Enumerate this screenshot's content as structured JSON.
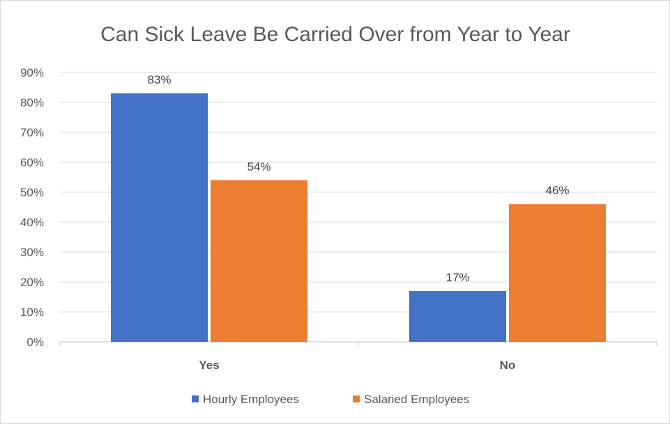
{
  "chart_data": {
    "type": "bar",
    "title": "Can Sick Leave Be Carried Over from Year to Year",
    "categories": [
      "Yes",
      "No"
    ],
    "series": [
      {
        "name": "Hourly Employees",
        "values": [
          83,
          17
        ],
        "labels": [
          "83%",
          "17%"
        ],
        "color": "#4472C4"
      },
      {
        "name": "Salaried Employees",
        "values": [
          54,
          46
        ],
        "labels": [
          "54%",
          "46%"
        ],
        "color": "#ED7D31"
      }
    ],
    "ylim": [
      0,
      90
    ],
    "yticks": [
      0,
      10,
      20,
      30,
      40,
      50,
      60,
      70,
      80,
      90
    ],
    "ytick_labels": [
      "0%",
      "10%",
      "20%",
      "30%",
      "40%",
      "50%",
      "60%",
      "70%",
      "80%",
      "90%"
    ],
    "xlabel": "",
    "ylabel": "",
    "grid": true,
    "legend_position": "bottom"
  }
}
